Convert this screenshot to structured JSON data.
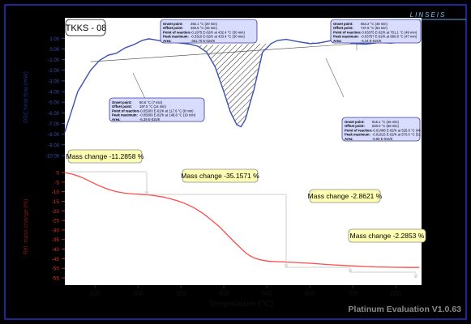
{
  "sample_label": "TKKS - 08",
  "brand": "LINSEIS",
  "footer": "Platinum Evaluation V1.0.63",
  "left_axis_labels": {
    "dsc": "DSC  heat flow (mW)",
    "tg": "Rel. mass change (%)"
  },
  "colors": {
    "background": "#000000",
    "panel_border": "#3a3aff",
    "plot_bg": "#ffffff",
    "dsc_curve": "#3a52b3",
    "tg_curve": "#ff4a4a",
    "box_yellow": "#ffffb4",
    "box_blue": "#d8dcff",
    "axis_blue": "#3a52b3",
    "axis_red": "#e0342a"
  },
  "chart_data": [
    {
      "type": "line",
      "title": "",
      "xlabel": "Temperature (°C)",
      "ylabel": "DSC  heat flow (mW)",
      "xlim": [
        30,
        860
      ],
      "ylim": [
        -10,
        1.4
      ],
      "y_ticks": [
        -10,
        -9,
        -8,
        -7,
        -6,
        -5,
        -4,
        -3,
        -2,
        -1,
        0,
        1
      ],
      "series": [
        {
          "x": [
            30,
            60,
            90,
            110,
            130,
            150,
            170,
            190,
            210,
            225,
            240,
            260,
            280,
            300,
            320,
            340,
            360,
            380,
            400,
            415,
            430,
            440,
            450,
            470,
            490,
            510,
            525,
            545,
            570,
            600,
            620,
            640,
            660,
            680,
            700,
            730,
            760,
            790,
            820,
            840,
            855
          ],
          "values": [
            -7.8,
            -4.0,
            -2.0,
            -1.1,
            -0.6,
            -0.4,
            0.1,
            0.4,
            0.8,
            0.95,
            0.85,
            0.7,
            0.65,
            0.55,
            0.45,
            0.25,
            -0.3,
            -1.7,
            -4.0,
            -5.9,
            -7.1,
            -7.3,
            -6.6,
            -3.8,
            -0.3,
            0.5,
            0.8,
            0.9,
            0.7,
            0.5,
            0.55,
            0.7,
            0.9,
            0.75,
            0.5,
            0.45,
            0.6,
            0.55,
            0.7,
            0.85,
            0.95
          ]
        }
      ],
      "annotations": [
        {
          "rows": [
            {
              "k": "Onset point:",
              "v": "90.6 °C (7 min)"
            },
            {
              "k": "Offset point:",
              "v": "197.5 °C (14 min)"
            },
            {
              "k": "Point of reaction:",
              "v": "-0.05303 E-02/K at 117.6 °C (8 min)"
            },
            {
              "k": "Peak maximum:",
              "v": "-0.05009 E-02/K at 148.8 °C (10 min)"
            },
            {
              "k": "Area:",
              "v": "-6.39 E-02s/K"
            }
          ]
        },
        {
          "rows": [
            {
              "k": "Onset point:",
              "v": "292.1 °C (20 min)"
            },
            {
              "k": "Offset point:",
              "v": "483.5 °C (33 min)"
            },
            {
              "k": "Point of reaction:",
              "v": "-0.1975 E-02/K at 432.4 °C (30 min)"
            },
            {
              "k": "Peak maximum:",
              "v": "-0.3310 E-02/K at 433.4 °C (30 min)"
            },
            {
              "k": "Area:",
              "v": "-351.70 E-02s/K"
            }
          ]
        },
        {
          "rows": [
            {
              "k": "Onset point:",
              "v": "664.2 °C (48 min)"
            },
            {
              "k": "Offset point:",
              "v": "747.6 °C (53 min)"
            },
            {
              "k": "Point of reaction:",
              "v": "-0.03375 E-02/K at 701.1 °C (49 min)"
            },
            {
              "k": "Peak maximum:",
              "v": "-0.03757 E-02/K at 680.8 °C (47 min)"
            },
            {
              "k": "Area:",
              "v": "-4.44 E-02s/K"
            }
          ]
        },
        {
          "rows": [
            {
              "k": "Onset point:",
              "v": "515.1 °C (45 min)"
            },
            {
              "k": "Offset point:",
              "v": "640.0 °C (58 min)"
            },
            {
              "k": "Point of reaction:",
              "v": "-0.01488 E-02/K at 525.9 °C (46 min)"
            },
            {
              "k": "Peak maximum:",
              "v": "-0.01615 E-02/K at 570.0 °C (51 min)"
            },
            {
              "k": "Area:",
              "v": "-6.66 E-02s/K"
            }
          ]
        }
      ]
    },
    {
      "type": "line",
      "title": "",
      "xlabel": "Temperature (°C)",
      "ylabel": "Rel. mass change (%)",
      "xlim": [
        30,
        860
      ],
      "ylim": [
        -55,
        0
      ],
      "x_ticks": [
        100,
        200,
        300,
        400,
        500,
        600,
        700,
        800
      ],
      "y_ticks": [
        0,
        -5,
        -10,
        -15,
        -20,
        -25,
        -30,
        -35,
        -40,
        -45,
        -50,
        -55
      ],
      "series": [
        {
          "x": [
            30,
            50,
            70,
            90,
            110,
            130,
            150,
            170,
            190,
            200,
            230,
            260,
            290,
            310,
            330,
            350,
            370,
            390,
            410,
            430,
            450,
            460,
            470,
            480,
            490,
            500,
            510,
            530,
            560,
            600,
            650,
            700,
            750,
            800,
            840,
            855
          ],
          "values": [
            0.0,
            -1.0,
            -2.6,
            -4.8,
            -6.9,
            -8.7,
            -10.0,
            -10.8,
            -11.2,
            -11.3,
            -11.8,
            -12.8,
            -14.6,
            -16.2,
            -18.3,
            -21.1,
            -24.6,
            -28.4,
            -33.0,
            -37.5,
            -41.8,
            -43.4,
            -44.6,
            -45.3,
            -45.8,
            -46.2,
            -46.4,
            -46.6,
            -46.9,
            -47.4,
            -48.2,
            -48.8,
            -49.3,
            -49.5,
            -49.6,
            -49.6
          ]
        }
      ],
      "annotations": [
        {
          "label": "Mass change -11.2858 %"
        },
        {
          "label": "Mass change -35.1571 %"
        },
        {
          "label": "Mass change -2.8621 %"
        },
        {
          "label": "Mass change -2.2853 %"
        }
      ]
    }
  ]
}
